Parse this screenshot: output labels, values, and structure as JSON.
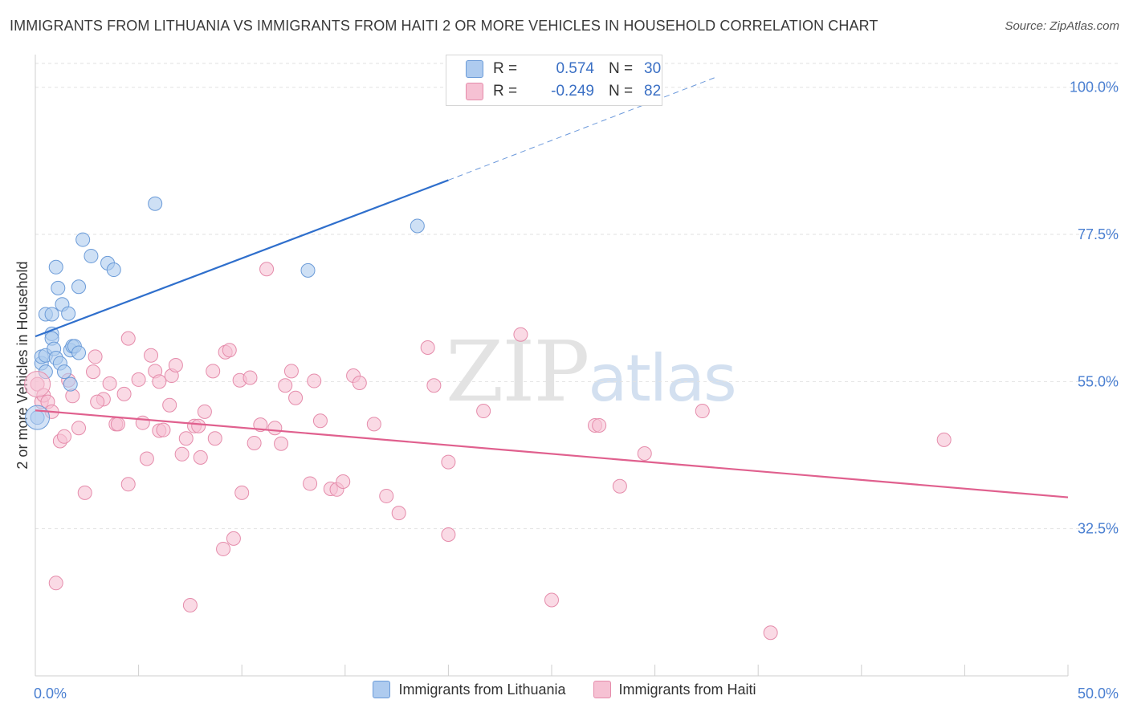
{
  "title": "IMMIGRANTS FROM LITHUANIA VS IMMIGRANTS FROM HAITI 2 OR MORE VEHICLES IN HOUSEHOLD CORRELATION CHART",
  "source": "Source: ZipAtlas.com",
  "watermark": {
    "zip": "ZIP",
    "atlas": "atlas"
  },
  "stats": {
    "r_label": "R =",
    "n_label": "N =",
    "lithuania": {
      "r": "0.574",
      "n": "30"
    },
    "haiti": {
      "r": "-0.249",
      "n": "82"
    }
  },
  "legend": {
    "lithuania": "Immigrants from Lithuania",
    "haiti": "Immigrants from Haiti"
  },
  "colors": {
    "blue_fill": "#aecbef",
    "blue_stroke": "#6b9bd8",
    "blue_line": "#2f6fcc",
    "pink_fill": "#f6c1d3",
    "pink_stroke": "#e58cab",
    "pink_line": "#e0608e",
    "tick_label": "#4a7fd1",
    "grid": "#e2e2e2"
  },
  "chart_data": {
    "type": "scatter",
    "xlabel": "",
    "ylabel": "2 or more Vehicles in Household",
    "xlim": [
      0,
      50
    ],
    "ylim": [
      10,
      105
    ],
    "x_tick_labels": [
      {
        "v": 0,
        "label": "0.0%"
      },
      {
        "v": 50,
        "label": "50.0%"
      }
    ],
    "y_tick_labels": [
      {
        "v": 100,
        "label": "100.0%"
      },
      {
        "v": 77.5,
        "label": "77.5%"
      },
      {
        "v": 55,
        "label": "55.0%"
      },
      {
        "v": 32.5,
        "label": "32.5%"
      }
    ],
    "grid": true,
    "series": [
      {
        "name": "Immigrants from Lithuania",
        "color": "blue",
        "points": [
          [
            0.1,
            49.5
          ],
          [
            0.3,
            57.8
          ],
          [
            0.3,
            58.8
          ],
          [
            0.5,
            56.5
          ],
          [
            0.5,
            59
          ],
          [
            0.5,
            65.3
          ],
          [
            0.8,
            65.3
          ],
          [
            0.8,
            62.3
          ],
          [
            0.8,
            61.6
          ],
          [
            0.9,
            60
          ],
          [
            1.0,
            72.5
          ],
          [
            1.0,
            58.6
          ],
          [
            1.1,
            69.3
          ],
          [
            1.2,
            57.8
          ],
          [
            1.3,
            66.8
          ],
          [
            1.4,
            56.5
          ],
          [
            1.6,
            65.4
          ],
          [
            1.7,
            54.6
          ],
          [
            1.7,
            59.8
          ],
          [
            1.8,
            60.4
          ],
          [
            1.9,
            60.4
          ],
          [
            2.1,
            69.5
          ],
          [
            2.1,
            59.4
          ],
          [
            2.3,
            76.7
          ],
          [
            2.7,
            74.2
          ],
          [
            3.5,
            73.1
          ],
          [
            3.8,
            72.1
          ],
          [
            5.8,
            82.2
          ],
          [
            13.2,
            72.0
          ],
          [
            18.5,
            78.8
          ]
        ],
        "trend": {
          "x0": 0,
          "y0": 61.9,
          "x1": 20,
          "y1": 85.8,
          "dashed_to": {
            "x": 33,
            "y": 101.6
          }
        }
      },
      {
        "name": "Immigrants from Haiti",
        "color": "pink",
        "points": [
          [
            0.1,
            54.6
          ],
          [
            0.3,
            51.9
          ],
          [
            0.4,
            52.9
          ],
          [
            0.6,
            51.9
          ],
          [
            0.8,
            50.4
          ],
          [
            1.0,
            24.2
          ],
          [
            1.2,
            45.9
          ],
          [
            1.4,
            46.6
          ],
          [
            1.6,
            55.2
          ],
          [
            1.8,
            52.8
          ],
          [
            2.1,
            47.9
          ],
          [
            2.4,
            38.0
          ],
          [
            2.8,
            56.5
          ],
          [
            2.9,
            58.8
          ],
          [
            3.3,
            52.3
          ],
          [
            3.6,
            54.7
          ],
          [
            3.9,
            48.5
          ],
          [
            4.3,
            53.1
          ],
          [
            4.5,
            39.3
          ],
          [
            4.5,
            61.6
          ],
          [
            5.0,
            55.3
          ],
          [
            5.2,
            48.7
          ],
          [
            5.4,
            43.2
          ],
          [
            5.6,
            59.0
          ],
          [
            5.8,
            56.6
          ],
          [
            6.0,
            47.5
          ],
          [
            6.2,
            47.6
          ],
          [
            6.5,
            51.4
          ],
          [
            6.6,
            55.9
          ],
          [
            6.8,
            57.5
          ],
          [
            7.1,
            43.9
          ],
          [
            7.3,
            46.3
          ],
          [
            7.5,
            20.8
          ],
          [
            7.7,
            48.2
          ],
          [
            7.9,
            48.2
          ],
          [
            8.0,
            43.4
          ],
          [
            8.2,
            50.4
          ],
          [
            8.6,
            56.6
          ],
          [
            8.7,
            46.3
          ],
          [
            9.1,
            29.4
          ],
          [
            9.2,
            59.5
          ],
          [
            9.4,
            59.8
          ],
          [
            9.6,
            31.0
          ],
          [
            9.9,
            55.2
          ],
          [
            10.0,
            38.0
          ],
          [
            10.4,
            55.6
          ],
          [
            10.6,
            45.6
          ],
          [
            10.9,
            48.4
          ],
          [
            11.2,
            72.2
          ],
          [
            11.6,
            47.9
          ],
          [
            11.9,
            45.5
          ],
          [
            12.1,
            54.4
          ],
          [
            12.4,
            56.6
          ],
          [
            12.6,
            52.5
          ],
          [
            13.3,
            39.4
          ],
          [
            13.5,
            55.1
          ],
          [
            13.8,
            49.0
          ],
          [
            14.3,
            38.6
          ],
          [
            14.6,
            38.5
          ],
          [
            14.9,
            39.7
          ],
          [
            15.4,
            55.9
          ],
          [
            15.7,
            54.8
          ],
          [
            16.4,
            48.5
          ],
          [
            17.0,
            37.5
          ],
          [
            17.6,
            34.9
          ],
          [
            19.0,
            60.2
          ],
          [
            19.3,
            54.4
          ],
          [
            20.0,
            42.7
          ],
          [
            20.0,
            31.6
          ],
          [
            21.7,
            50.5
          ],
          [
            23.5,
            62.2
          ],
          [
            25.0,
            21.6
          ],
          [
            27.1,
            48.3
          ],
          [
            27.3,
            48.3
          ],
          [
            28.3,
            39.0
          ],
          [
            29.5,
            44.0
          ],
          [
            32.3,
            50.5
          ],
          [
            35.6,
            16.6
          ],
          [
            44.0,
            46.1
          ],
          [
            4.0,
            48.5
          ],
          [
            6.0,
            55.0
          ],
          [
            3.0,
            51.9
          ]
        ],
        "trend": {
          "x0": 0,
          "y0": 50.6,
          "x1": 50,
          "y1": 37.3
        }
      }
    ]
  }
}
